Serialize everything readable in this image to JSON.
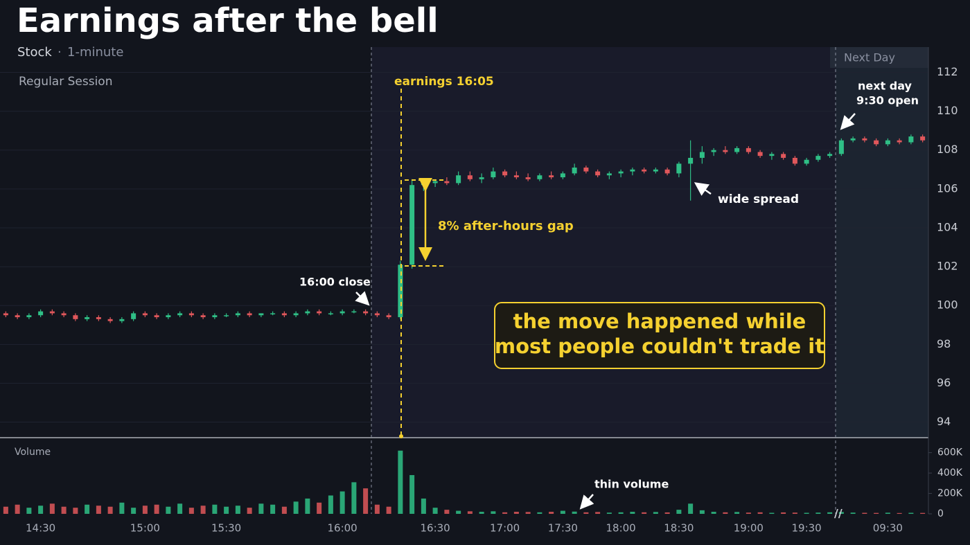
{
  "chart_data": {
    "type": "candlestick",
    "title": "Earnings after the bell",
    "subtitle": [
      "Stock",
      "·",
      "1-minute"
    ],
    "regions": [
      "Regular Session",
      "Next Day"
    ],
    "annotations": {
      "earnings": "earnings 16:05",
      "gap": "8% after-hours gap",
      "close": "16:00 close",
      "spread": "wide spread",
      "open": [
        "next day",
        "9:30 open"
      ],
      "callout": [
        "the move happened while",
        "most people couldn't trade it"
      ],
      "volume_title": "Volume",
      "thin": "thin volume"
    },
    "up_color": "#2fbf86",
    "down_color": "#e0575b",
    "grid": true,
    "categories": [
      null,
      null,
      null,
      "14:30",
      null,
      null,
      null,
      null,
      null,
      null,
      null,
      null,
      "15:00",
      null,
      null,
      null,
      null,
      null,
      null,
      "15:30",
      null,
      null,
      null,
      null,
      null,
      null,
      null,
      null,
      null,
      "16:00",
      null,
      null,
      null,
      null,
      null,
      null,
      null,
      "16:30",
      null,
      null,
      null,
      null,
      null,
      "17:00",
      null,
      null,
      null,
      null,
      "17:30",
      null,
      null,
      null,
      null,
      "18:00",
      null,
      null,
      null,
      null,
      "18:30",
      null,
      null,
      null,
      null,
      null,
      "19:00",
      null,
      null,
      null,
      null,
      "19:30",
      null,
      null,
      null,
      null,
      null,
      null,
      "09:30",
      null,
      null,
      null
    ],
    "candles": [
      [
        99.6,
        99.7,
        99.4,
        99.5
      ],
      [
        99.5,
        99.6,
        99.3,
        99.4
      ],
      [
        99.4,
        99.6,
        99.3,
        99.5
      ],
      [
        99.5,
        99.8,
        99.4,
        99.7
      ],
      [
        99.7,
        99.8,
        99.5,
        99.6
      ],
      [
        99.6,
        99.7,
        99.4,
        99.5
      ],
      [
        99.5,
        99.6,
        99.2,
        99.3
      ],
      [
        99.3,
        99.5,
        99.2,
        99.4
      ],
      [
        99.4,
        99.5,
        99.2,
        99.3
      ],
      [
        99.3,
        99.4,
        99.1,
        99.2
      ],
      [
        99.2,
        99.4,
        99.1,
        99.3
      ],
      [
        99.3,
        99.7,
        99.2,
        99.6
      ],
      [
        99.6,
        99.7,
        99.4,
        99.5
      ],
      [
        99.5,
        99.6,
        99.3,
        99.4
      ],
      [
        99.4,
        99.6,
        99.3,
        99.5
      ],
      [
        99.5,
        99.7,
        99.4,
        99.6
      ],
      [
        99.6,
        99.7,
        99.4,
        99.5
      ],
      [
        99.5,
        99.6,
        99.3,
        99.4
      ],
      [
        99.4,
        99.6,
        99.3,
        99.5
      ],
      [
        99.5,
        99.6,
        99.4,
        99.5
      ],
      [
        99.5,
        99.7,
        99.4,
        99.6
      ],
      [
        99.6,
        99.7,
        99.4,
        99.5
      ],
      [
        99.5,
        99.6,
        99.4,
        99.6
      ],
      [
        99.6,
        99.7,
        99.5,
        99.6
      ],
      [
        99.6,
        99.7,
        99.4,
        99.5
      ],
      [
        99.5,
        99.7,
        99.4,
        99.6
      ],
      [
        99.6,
        99.8,
        99.5,
        99.7
      ],
      [
        99.7,
        99.8,
        99.5,
        99.6
      ],
      [
        99.6,
        99.7,
        99.5,
        99.6
      ],
      [
        99.6,
        99.8,
        99.5,
        99.7
      ],
      [
        99.7,
        99.8,
        99.6,
        99.7
      ],
      [
        99.7,
        99.8,
        99.5,
        99.6
      ],
      [
        99.6,
        99.7,
        99.4,
        99.5
      ],
      [
        99.5,
        99.6,
        99.3,
        99.4
      ],
      [
        99.4,
        102.3,
        99.3,
        102.1
      ],
      [
        102.1,
        106.5,
        101.9,
        106.2
      ],
      [
        106.2,
        106.4,
        105.9,
        106.3
      ],
      [
        106.3,
        106.5,
        106.1,
        106.4
      ],
      [
        106.4,
        106.6,
        106.2,
        106.3
      ],
      [
        106.3,
        106.9,
        106.2,
        106.7
      ],
      [
        106.7,
        106.9,
        106.4,
        106.5
      ],
      [
        106.5,
        106.8,
        106.3,
        106.6
      ],
      [
        106.6,
        107.1,
        106.5,
        106.9
      ],
      [
        106.9,
        107.0,
        106.6,
        106.7
      ],
      [
        106.7,
        106.9,
        106.5,
        106.6
      ],
      [
        106.6,
        106.8,
        106.4,
        106.5
      ],
      [
        106.5,
        106.8,
        106.4,
        106.7
      ],
      [
        106.7,
        106.9,
        106.5,
        106.6
      ],
      [
        106.6,
        106.9,
        106.5,
        106.8
      ],
      [
        106.8,
        107.3,
        106.7,
        107.1
      ],
      [
        107.1,
        107.2,
        106.8,
        106.9
      ],
      [
        106.9,
        107.0,
        106.6,
        106.7
      ],
      [
        106.7,
        106.9,
        106.5,
        106.8
      ],
      [
        106.8,
        107.0,
        106.6,
        106.9
      ],
      [
        106.9,
        107.1,
        106.7,
        107.0
      ],
      [
        107.0,
        107.1,
        106.8,
        106.9
      ],
      [
        106.9,
        107.1,
        106.8,
        107.0
      ],
      [
        107.0,
        107.1,
        106.7,
        106.8
      ],
      [
        106.8,
        107.4,
        106.6,
        107.3
      ],
      [
        107.3,
        108.5,
        105.4,
        107.6
      ],
      [
        107.6,
        108.2,
        107.3,
        107.9
      ],
      [
        107.9,
        108.1,
        107.7,
        108.0
      ],
      [
        108.0,
        108.2,
        107.8,
        107.9
      ],
      [
        107.9,
        108.2,
        107.8,
        108.1
      ],
      [
        108.1,
        108.2,
        107.8,
        107.9
      ],
      [
        107.9,
        108.0,
        107.6,
        107.7
      ],
      [
        107.7,
        107.9,
        107.5,
        107.8
      ],
      [
        107.8,
        107.9,
        107.5,
        107.6
      ],
      [
        107.6,
        107.7,
        107.2,
        107.3
      ],
      [
        107.3,
        107.6,
        107.2,
        107.5
      ],
      [
        107.5,
        107.8,
        107.4,
        107.7
      ],
      [
        107.7,
        107.9,
        107.6,
        107.8
      ],
      [
        107.8,
        108.6,
        107.7,
        108.5
      ],
      [
        108.5,
        108.7,
        108.4,
        108.6
      ],
      [
        108.6,
        108.7,
        108.4,
        108.5
      ],
      [
        108.5,
        108.6,
        108.2,
        108.3
      ],
      [
        108.3,
        108.6,
        108.2,
        108.5
      ],
      [
        108.5,
        108.6,
        108.3,
        108.4
      ],
      [
        108.4,
        108.8,
        108.3,
        108.7
      ],
      [
        108.7,
        108.8,
        108.4,
        108.5
      ]
    ],
    "volumes": [
      70000,
      90000,
      60000,
      80000,
      100000,
      70000,
      60000,
      90000,
      80000,
      70000,
      110000,
      60000,
      80000,
      90000,
      70000,
      100000,
      60000,
      80000,
      90000,
      70000,
      80000,
      60000,
      100000,
      90000,
      70000,
      120000,
      150000,
      110000,
      180000,
      220000,
      310000,
      250000,
      90000,
      70000,
      620000,
      380000,
      150000,
      60000,
      40000,
      30000,
      25000,
      20000,
      25000,
      15000,
      20000,
      18000,
      15000,
      20000,
      30000,
      22000,
      15000,
      18000,
      12000,
      15000,
      20000,
      15000,
      18000,
      14000,
      40000,
      100000,
      35000,
      20000,
      15000,
      18000,
      12000,
      15000,
      10000,
      14000,
      12000,
      10000,
      12000,
      15000,
      18000,
      12000,
      10000,
      9000,
      11000,
      8000,
      10000,
      9000
    ],
    "ylim": [
      93.2,
      113.3
    ],
    "yticks": [
      94,
      96,
      98,
      100,
      102,
      104,
      106,
      108,
      110,
      112
    ],
    "y2lim": [
      0,
      720000
    ],
    "y2ticks": [
      0,
      {
        "value": 200000,
        "label": "200K"
      },
      {
        "value": 400000,
        "label": "400K"
      },
      {
        "value": 600000,
        "label": "600K"
      }
    ]
  }
}
